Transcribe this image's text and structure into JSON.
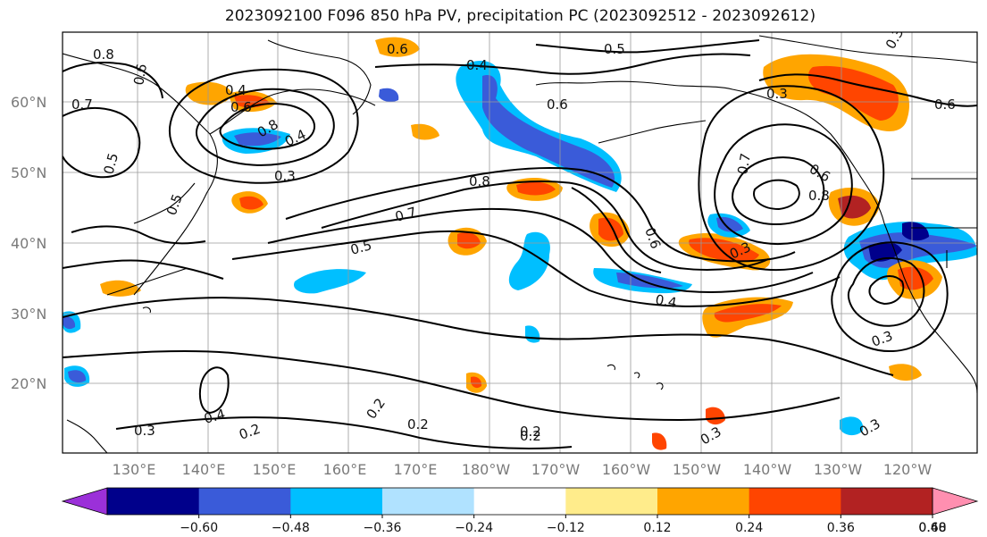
{
  "title": "2023092100 F096 850 hPa PV, precipitation PC (2023092512 - 2023092612)",
  "latitude_labels": [
    "60°N",
    "50°N",
    "40°N",
    "30°N",
    "20°N"
  ],
  "longitude_labels": [
    "130°E",
    "140°E",
    "150°E",
    "160°E",
    "170°E",
    "180°W",
    "170°W",
    "160°W",
    "150°W",
    "140°W",
    "130°W",
    "120°W"
  ],
  "colorbar": {
    "colors": [
      "#9b30d9",
      "#00008b",
      "#3a5bd9",
      "#00bfff",
      "#b0e2ff",
      "#ffffff",
      "#ffec8b",
      "#ffa500",
      "#ff4500",
      "#b22222",
      "#ff8fb0"
    ],
    "tick_labels": [
      "−0.60",
      "−0.48",
      "−0.36",
      "−0.24",
      "−0.12",
      "0.12",
      "0.24",
      "0.36",
      "0.48",
      "0.60"
    ]
  },
  "contour_labels": [
    "0.8",
    "0.7",
    "0.6",
    "0.4",
    "0.6",
    "0.8",
    "0.5",
    "0.6",
    "0.6",
    "0.3",
    "0.6",
    "0.4",
    "0.3",
    "0.5",
    "0.8",
    "0.7",
    "0.5",
    "0.6",
    "0.4",
    "0.3",
    "0.7",
    "0.6",
    "0.8",
    "0.3",
    "0.4",
    "0.5",
    "0.3",
    "0.4",
    "0.2",
    "0.2",
    "0.2",
    "0.2",
    "0.2",
    "0.3",
    "0.3",
    "0.3"
  ]
}
